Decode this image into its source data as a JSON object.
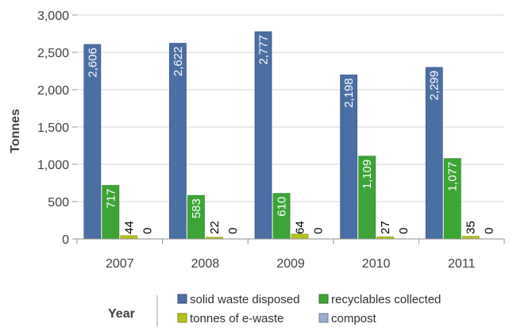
{
  "chart_data": {
    "type": "bar",
    "title": "",
    "xlabel": "",
    "ylabel": "Tonnes",
    "categories": [
      "2007",
      "2008",
      "2009",
      "2010",
      "2011"
    ],
    "ylim": [
      0,
      3000
    ],
    "yticks": [
      0,
      500,
      1000,
      1500,
      2000,
      2500,
      3000
    ],
    "ytick_labels": [
      "0",
      "500",
      "1,000",
      "1,500",
      "2,000",
      "2,500",
      "3,000"
    ],
    "series": [
      {
        "name": "solid waste  disposed",
        "values": [
          2606,
          2622,
          2777,
          2198,
          2299
        ],
        "labels": [
          "2,606",
          "2,622",
          "2,777",
          "2,198",
          "2,299"
        ],
        "color": "#4A6FA5"
      },
      {
        "name": "recyclables collected",
        "values": [
          717,
          583,
          610,
          1109,
          1077
        ],
        "labels": [
          "717",
          "583",
          "610",
          "1,109",
          "1,077"
        ],
        "color": "#3DA535"
      },
      {
        "name": "tonnes of e-waste",
        "values": [
          44,
          22,
          64,
          27,
          35
        ],
        "labels": [
          "44",
          "22",
          "64",
          "27",
          "35"
        ],
        "color": "#B5C21D"
      },
      {
        "name": "compost",
        "values": [
          0,
          0,
          0,
          0,
          0
        ],
        "labels": [
          "0",
          "0",
          "0",
          "0",
          "0"
        ],
        "color": "#9AAFD0"
      }
    ],
    "grid": "horizontal",
    "legend": {
      "title": "Year",
      "position": "bottom"
    }
  }
}
